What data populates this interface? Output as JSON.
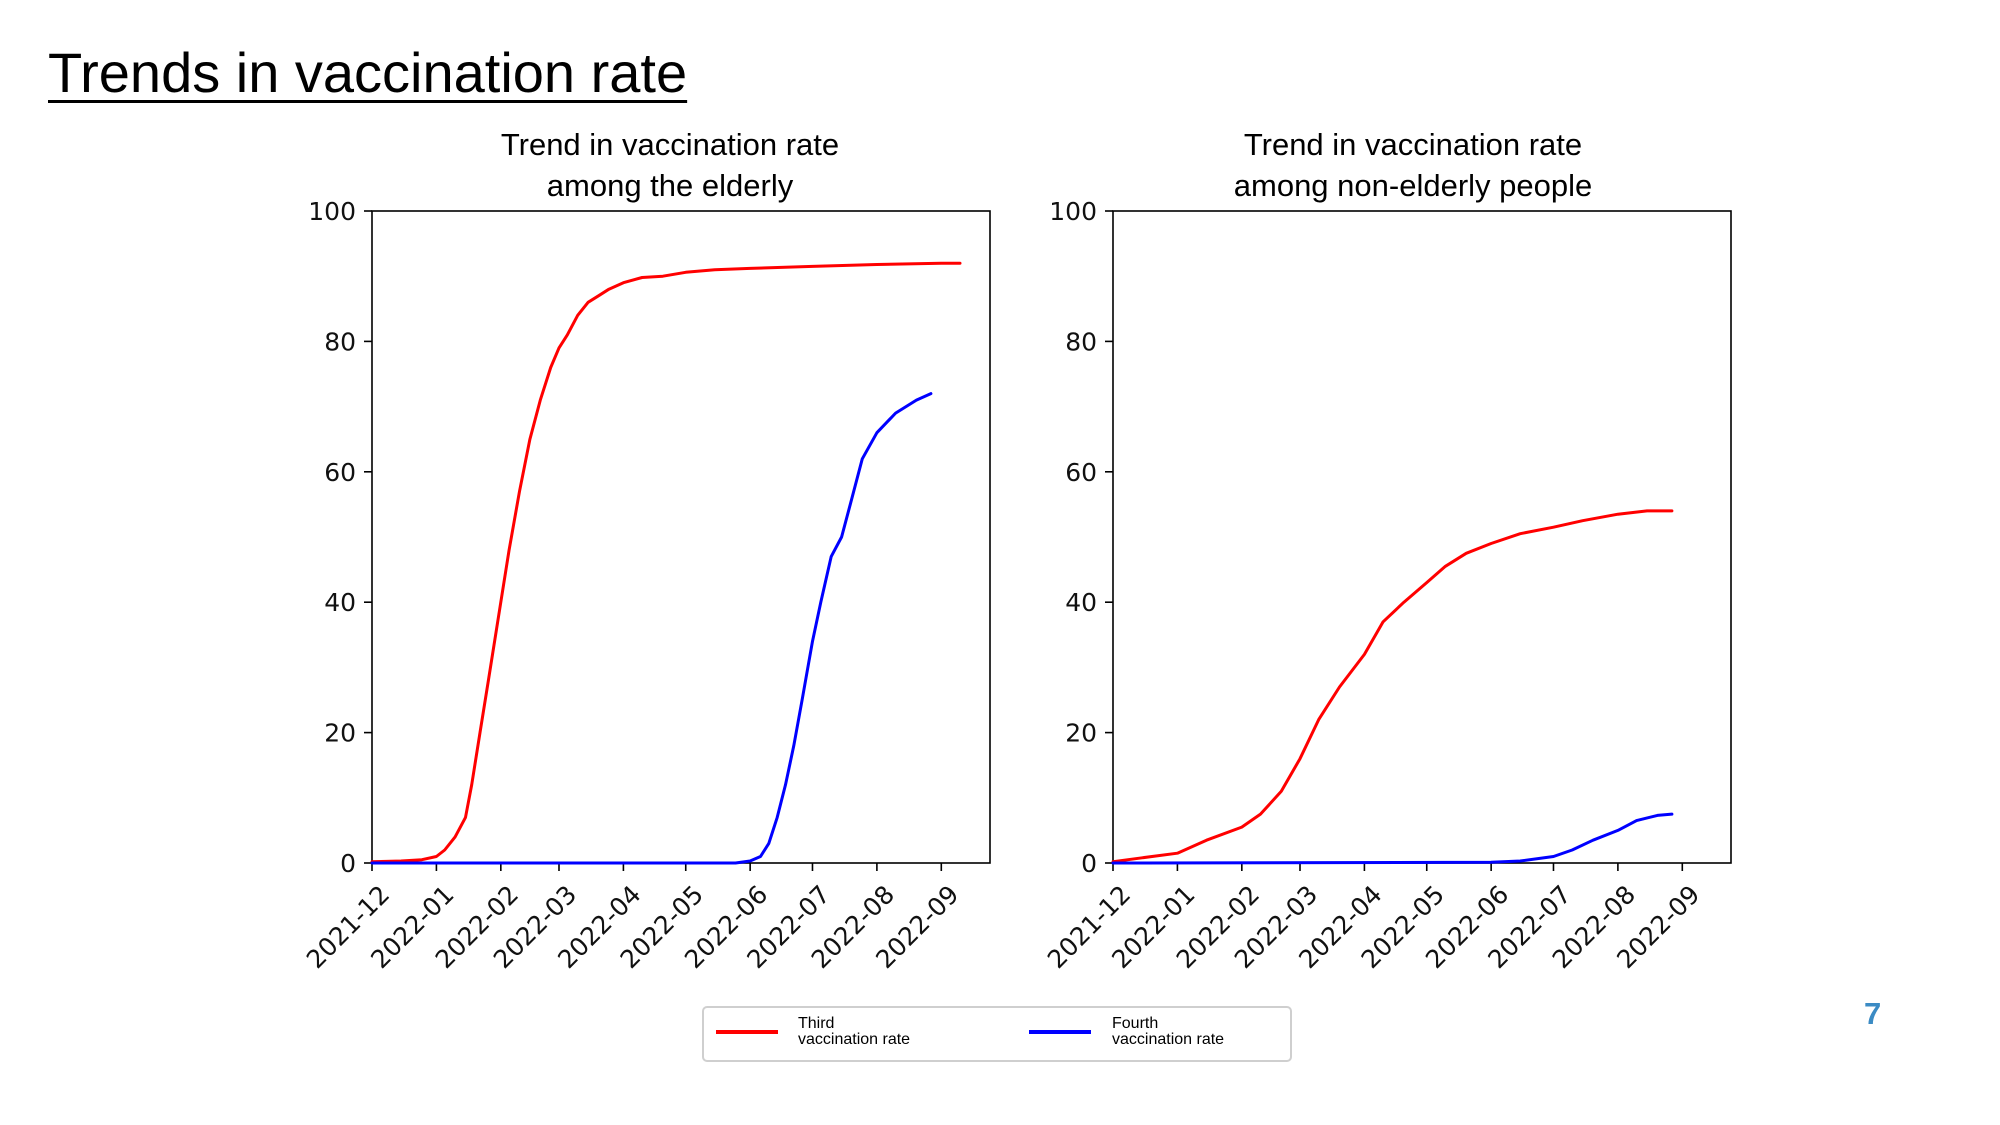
{
  "slide": {
    "title": "Trends in vaccination rate",
    "page_number": "7"
  },
  "colors": {
    "third": "#ff0000",
    "fourth": "#0000ff",
    "page_number": "#3b8bc4"
  },
  "legend": {
    "placement": "bottom-center",
    "third_line1": "Third",
    "third_line2": "vaccination rate",
    "fourth_line1": "Fourth",
    "fourth_line2": "vaccination rate"
  },
  "chart_data": [
    {
      "type": "line",
      "title_line1": "Trend in vaccination rate",
      "title_line2": "among the elderly",
      "xlabel": "",
      "ylabel": "",
      "x_ticks": [
        "2021-12",
        "2022-01",
        "2022-02",
        "2022-03",
        "2022-04",
        "2022-05",
        "2022-06",
        "2022-07",
        "2022-08",
        "2022-09"
      ],
      "y_ticks": [
        "0",
        "20",
        "40",
        "60",
        "80",
        "100"
      ],
      "ylim": [
        0,
        100
      ],
      "xlim": [
        "2021-12-01",
        "2022-09-10"
      ],
      "grid": false,
      "series": [
        {
          "name": "Third vaccination rate",
          "color": "#ff0000",
          "points": [
            [
              "2021-12-01",
              0.2
            ],
            [
              "2021-12-15",
              0.3
            ],
            [
              "2021-12-25",
              0.5
            ],
            [
              "2022-01-01",
              1
            ],
            [
              "2022-01-05",
              2
            ],
            [
              "2022-01-10",
              4
            ],
            [
              "2022-01-15",
              7
            ],
            [
              "2022-01-18",
              12
            ],
            [
              "2022-01-22",
              20
            ],
            [
              "2022-01-26",
              28
            ],
            [
              "2022-02-01",
              40
            ],
            [
              "2022-02-05",
              48
            ],
            [
              "2022-02-10",
              57
            ],
            [
              "2022-02-15",
              65
            ],
            [
              "2022-02-20",
              71
            ],
            [
              "2022-02-25",
              76
            ],
            [
              "2022-03-01",
              79
            ],
            [
              "2022-03-05",
              81
            ],
            [
              "2022-03-10",
              84
            ],
            [
              "2022-03-15",
              86
            ],
            [
              "2022-03-20",
              87
            ],
            [
              "2022-03-25",
              88
            ],
            [
              "2022-04-01",
              89
            ],
            [
              "2022-04-10",
              89.8
            ],
            [
              "2022-04-20",
              90
            ],
            [
              "2022-05-01",
              90.6
            ],
            [
              "2022-05-15",
              91
            ],
            [
              "2022-06-01",
              91.2
            ],
            [
              "2022-07-01",
              91.5
            ],
            [
              "2022-08-01",
              91.8
            ],
            [
              "2022-09-01",
              92
            ],
            [
              "2022-09-10",
              92
            ]
          ]
        },
        {
          "name": "Fourth vaccination rate",
          "color": "#0000ff",
          "points": [
            [
              "2021-12-01",
              0
            ],
            [
              "2022-05-25",
              0
            ],
            [
              "2022-06-01",
              0.3
            ],
            [
              "2022-06-06",
              1
            ],
            [
              "2022-06-10",
              3
            ],
            [
              "2022-06-14",
              7
            ],
            [
              "2022-06-18",
              12
            ],
            [
              "2022-06-22",
              18
            ],
            [
              "2022-06-26",
              25
            ],
            [
              "2022-07-01",
              34
            ],
            [
              "2022-07-05",
              40
            ],
            [
              "2022-07-10",
              47
            ],
            [
              "2022-07-15",
              50
            ],
            [
              "2022-07-20",
              56
            ],
            [
              "2022-07-25",
              62
            ],
            [
              "2022-08-01",
              66
            ],
            [
              "2022-08-10",
              69
            ],
            [
              "2022-08-20",
              71
            ],
            [
              "2022-08-27",
              72
            ]
          ]
        }
      ]
    },
    {
      "type": "line",
      "title_line1": "Trend in vaccination rate",
      "title_line2": "among non-elderly people",
      "xlabel": "",
      "ylabel": "",
      "x_ticks": [
        "2021-12",
        "2022-01",
        "2022-02",
        "2022-03",
        "2022-04",
        "2022-05",
        "2022-06",
        "2022-07",
        "2022-08",
        "2022-09"
      ],
      "y_ticks": [
        "0",
        "20",
        "40",
        "60",
        "80",
        "100"
      ],
      "ylim": [
        0,
        100
      ],
      "xlim": [
        "2021-12-01",
        "2022-09-10"
      ],
      "grid": false,
      "series": [
        {
          "name": "Third vaccination rate",
          "color": "#ff0000",
          "points": [
            [
              "2021-12-01",
              0.2
            ],
            [
              "2021-12-15",
              0.8
            ],
            [
              "2022-01-01",
              1.5
            ],
            [
              "2022-01-15",
              3.5
            ],
            [
              "2022-02-01",
              5.5
            ],
            [
              "2022-02-10",
              7.5
            ],
            [
              "2022-02-20",
              11
            ],
            [
              "2022-03-01",
              16
            ],
            [
              "2022-03-10",
              22
            ],
            [
              "2022-03-20",
              27
            ],
            [
              "2022-04-01",
              32
            ],
            [
              "2022-04-10",
              37
            ],
            [
              "2022-04-20",
              40
            ],
            [
              "2022-05-01",
              43
            ],
            [
              "2022-05-10",
              45.5
            ],
            [
              "2022-05-20",
              47.5
            ],
            [
              "2022-06-01",
              49
            ],
            [
              "2022-06-15",
              50.5
            ],
            [
              "2022-07-01",
              51.5
            ],
            [
              "2022-07-15",
              52.5
            ],
            [
              "2022-08-01",
              53.5
            ],
            [
              "2022-08-15",
              54
            ],
            [
              "2022-08-27",
              54
            ]
          ]
        },
        {
          "name": "Fourth vaccination rate",
          "color": "#0000ff",
          "points": [
            [
              "2021-12-01",
              0
            ],
            [
              "2022-06-01",
              0.1
            ],
            [
              "2022-06-15",
              0.3
            ],
            [
              "2022-07-01",
              1
            ],
            [
              "2022-07-10",
              2
            ],
            [
              "2022-07-20",
              3.5
            ],
            [
              "2022-08-01",
              5
            ],
            [
              "2022-08-10",
              6.5
            ],
            [
              "2022-08-20",
              7.3
            ],
            [
              "2022-08-27",
              7.5
            ]
          ]
        }
      ]
    }
  ]
}
